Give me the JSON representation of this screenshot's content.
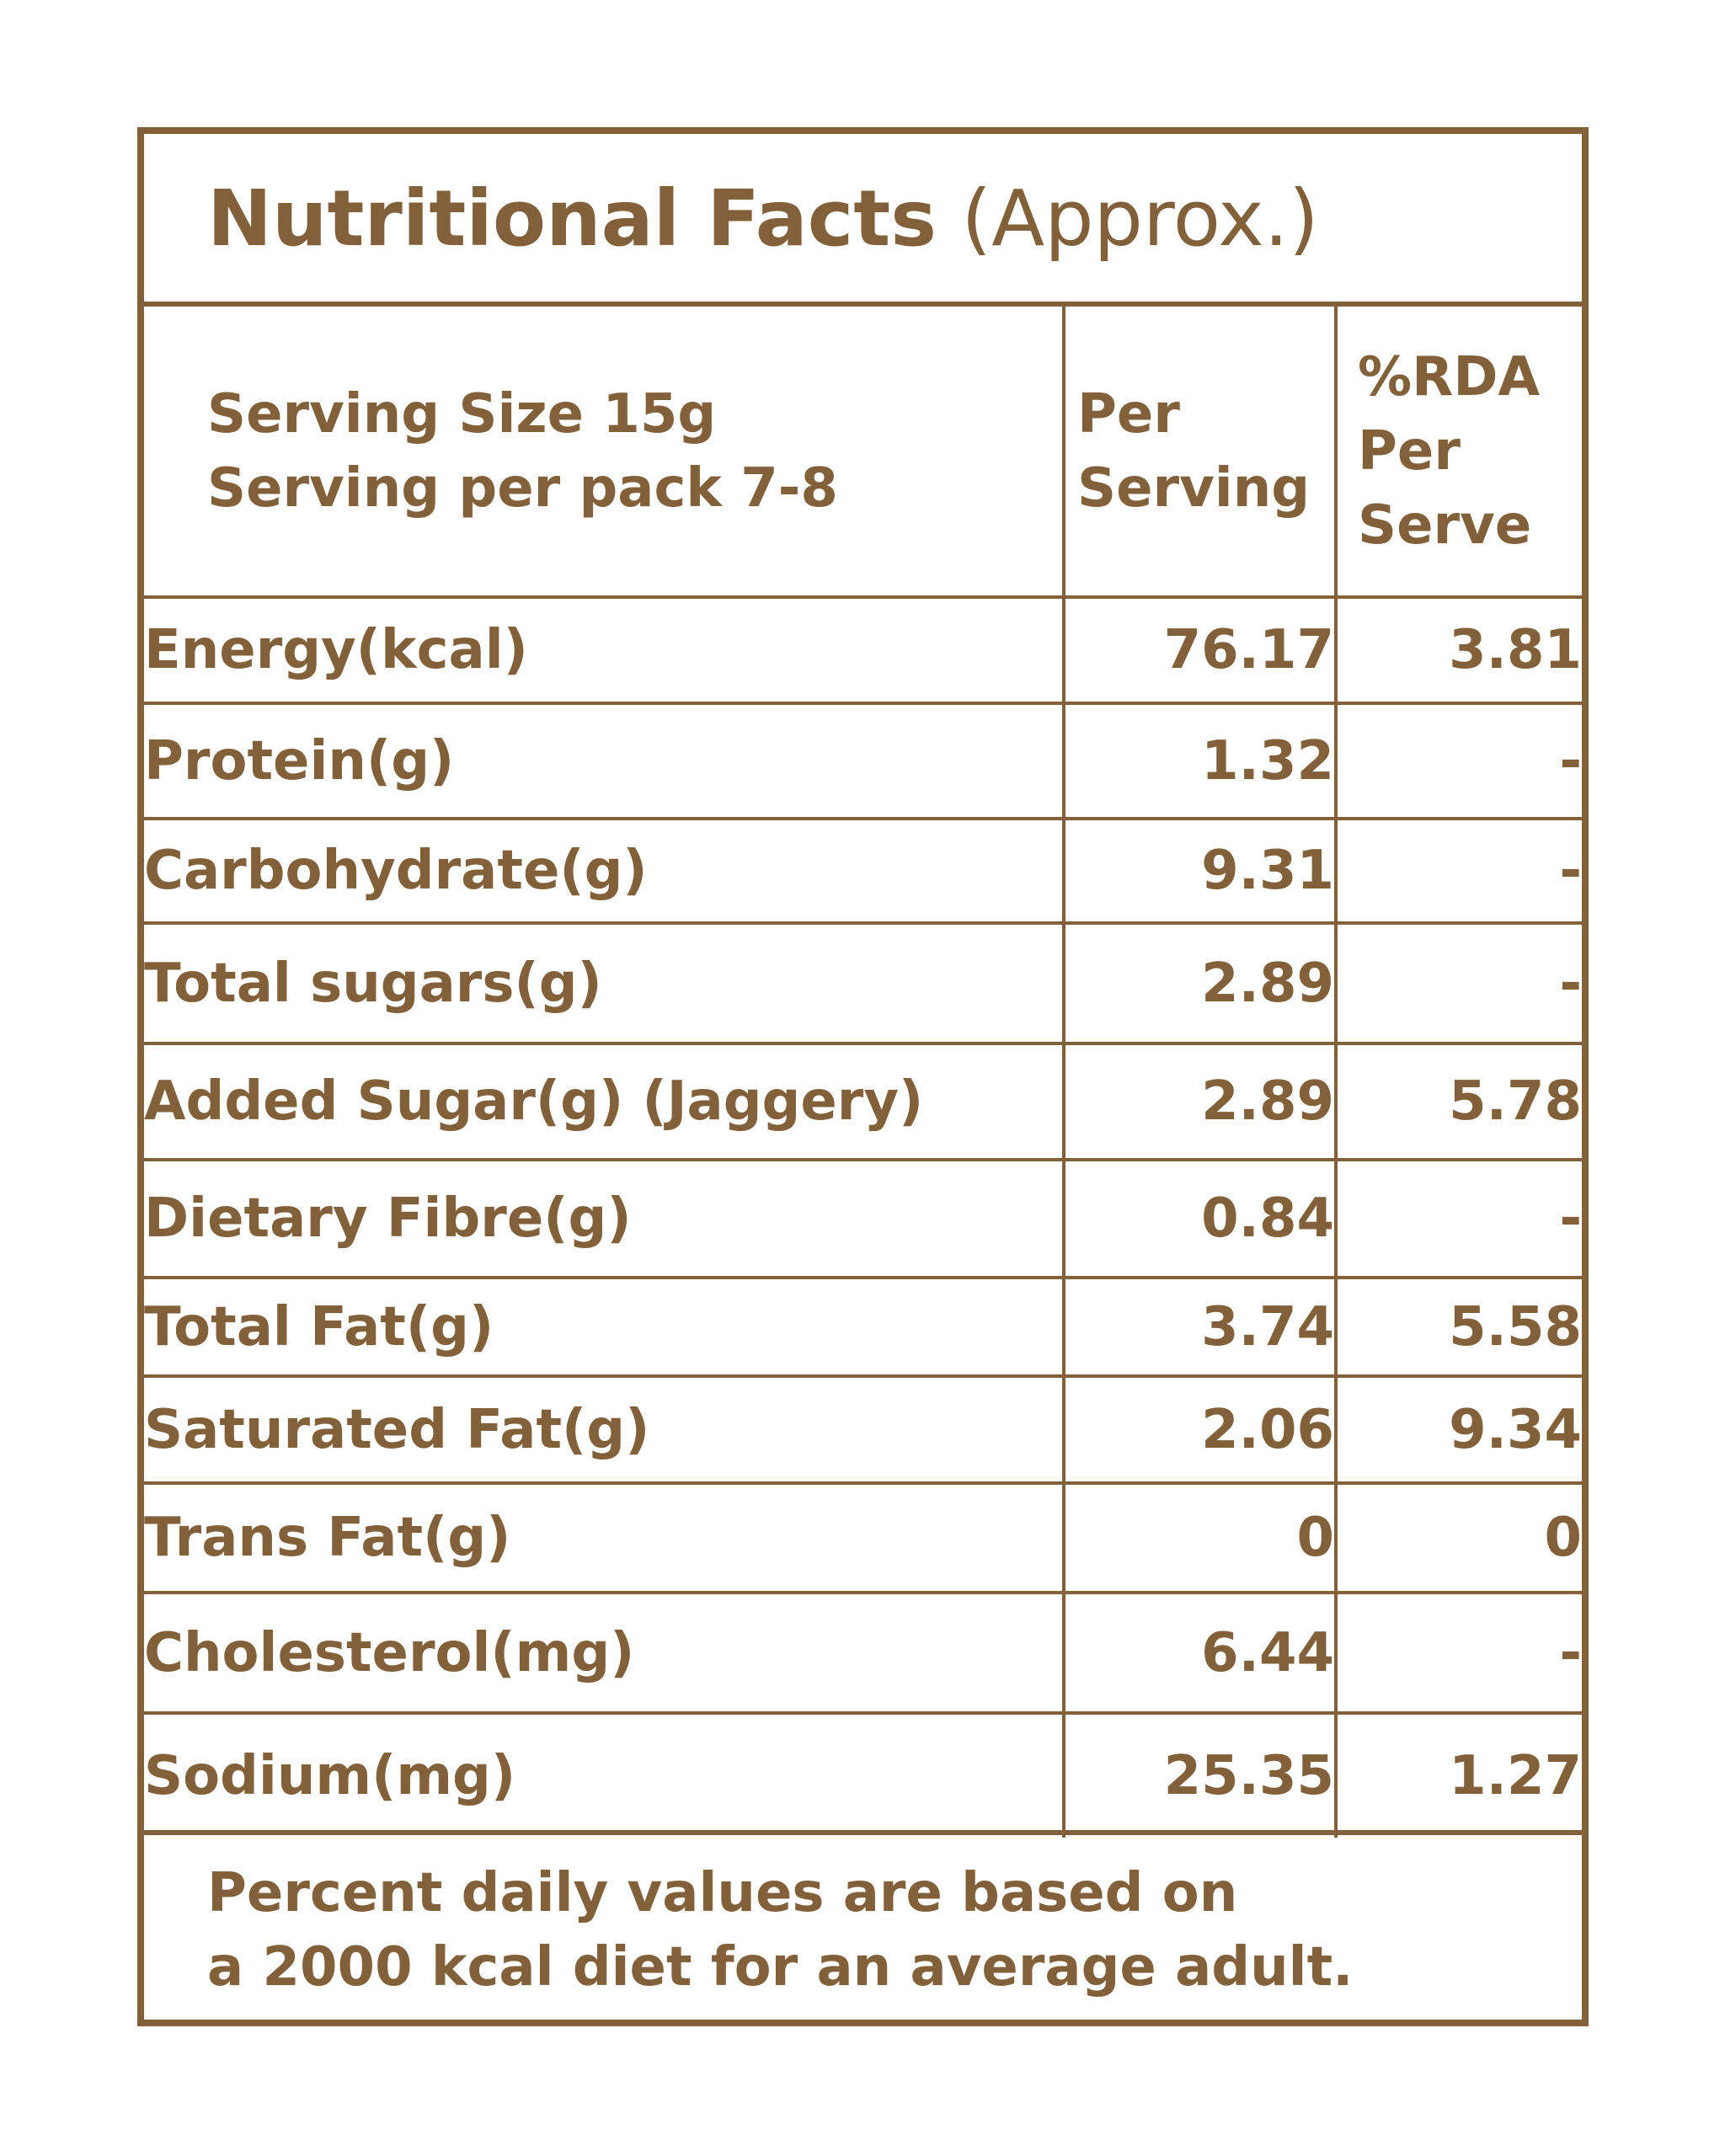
{
  "title": {
    "main": "Nutritional Facts",
    "sub": "(Approx.)"
  },
  "header": {
    "serving_size": "Serving Size 15g",
    "servings_per_pack": "Serving per pack 7-8",
    "per_serving_line1": "Per",
    "per_serving_line2": "Serving",
    "rda_line1": "%RDA",
    "rda_line2": "Per",
    "rda_line3": "Serve"
  },
  "rows": [
    {
      "name": "Energy(kcal)",
      "per_serving": "76.17",
      "rda": "3.81"
    },
    {
      "name": "Protein(g)",
      "per_serving": "1.32",
      "rda": "-"
    },
    {
      "name": "Carbohydrate(g)",
      "per_serving": "9.31",
      "rda": "-"
    },
    {
      "name": "Total sugars(g)",
      "per_serving": "2.89",
      "rda": "-"
    },
    {
      "name": "Added Sugar(g) (Jaggery)",
      "per_serving": "2.89",
      "rda": "5.78"
    },
    {
      "name": "Dietary Fibre(g)",
      "per_serving": "0.84",
      "rda": "-"
    },
    {
      "name": "Total Fat(g)",
      "per_serving": "3.74",
      "rda": "5.58"
    },
    {
      "name": "Saturated Fat(g)",
      "per_serving": "2.06",
      "rda": "9.34"
    },
    {
      "name": "Trans Fat(g)",
      "per_serving": "0",
      "rda": "0"
    },
    {
      "name": "Cholesterol(mg)",
      "per_serving": "6.44",
      "rda": "-"
    },
    {
      "name": "Sodium(mg)",
      "per_serving": "25.35",
      "rda": "1.27"
    }
  ],
  "footer": {
    "line1": "Percent daily values are based on",
    "line2": "a 2000 kcal diet for an average adult."
  },
  "colors": {
    "brand_brown": "#82613a",
    "background": "#ffffff"
  }
}
